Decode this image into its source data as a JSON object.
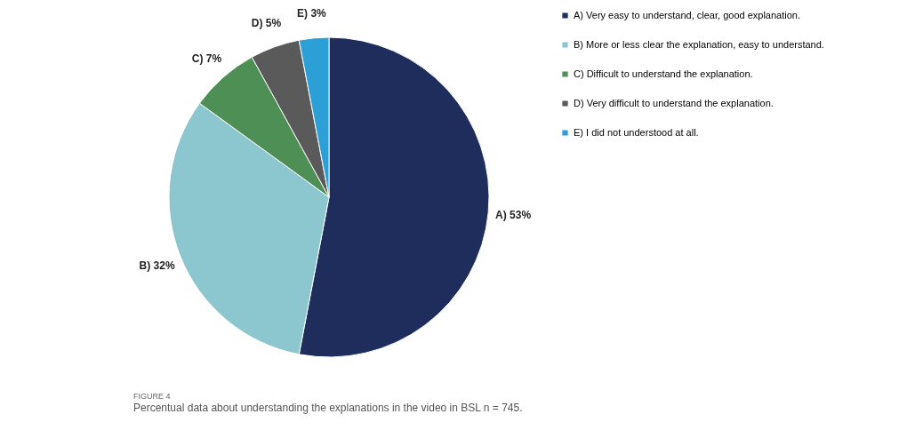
{
  "chart_data": {
    "type": "pie",
    "categories": [
      "A) Very easy to understand, clear, good explanation.",
      "B) More or less clear the explanation, easy to understand.",
      "C) Difficult to understand the explanation.",
      "D) Very difficult to understand the explanation.",
      "E) I did not understood at all."
    ],
    "values": [
      53,
      32,
      7,
      5,
      3
    ],
    "colors": [
      "#1f2d5c",
      "#8cc6cf",
      "#4e8f55",
      "#5a5a5a",
      "#2b9fd6"
    ],
    "value_labels": [
      "A) 53%",
      "B) 32%",
      "C) 7%",
      "D) 5%",
      "E) 3%"
    ],
    "legend": "right",
    "annotations": [
      "FIGURE 4",
      "Percentual data about understanding the explanations in the video in BSL n = 745."
    ]
  }
}
